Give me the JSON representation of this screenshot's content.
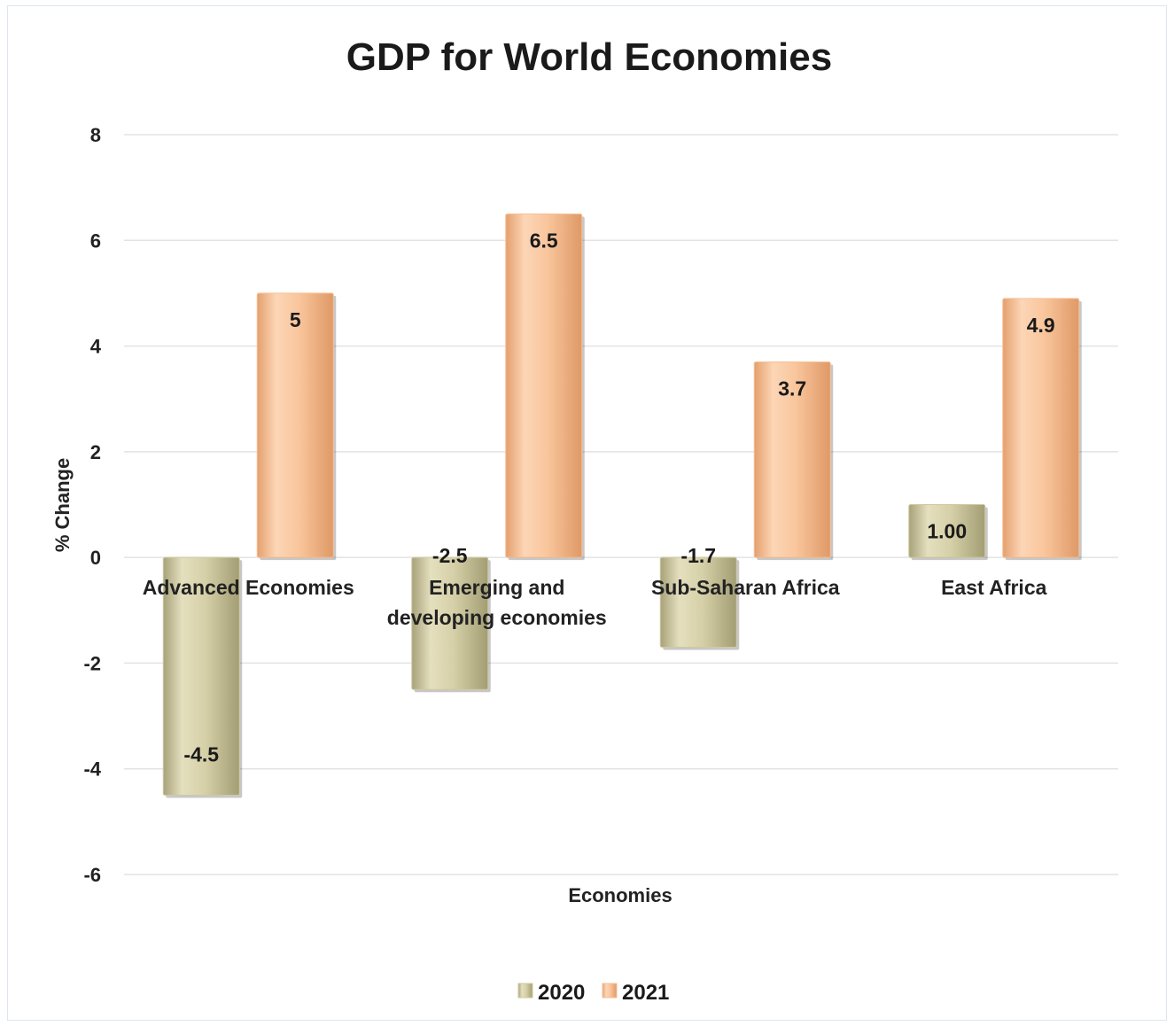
{
  "chart_data": {
    "type": "bar",
    "title": "GDP for World Economies",
    "xlabel": "Economies",
    "ylabel": "% Change",
    "ylim": [
      -6,
      8
    ],
    "yticks": [
      8,
      6,
      4,
      2,
      0,
      -2,
      -4,
      -6
    ],
    "categories": [
      [
        "Advanced Economies"
      ],
      [
        "Emerging and",
        "developing economies"
      ],
      [
        "Sub-Saharan Africa"
      ],
      [
        "East Africa"
      ]
    ],
    "series": [
      {
        "name": "2020",
        "values": [
          -4.5,
          -2.5,
          -1.7,
          1.0
        ],
        "labels": [
          "-4.5",
          "-2.5",
          "-1.7",
          "1.00"
        ],
        "color": "#cfc9a0"
      },
      {
        "name": "2021",
        "values": [
          5,
          6.5,
          3.7,
          4.9
        ],
        "labels": [
          "5",
          "6.5",
          "3.7",
          "4.9"
        ],
        "color": "#f7bf94"
      }
    ],
    "grid": true,
    "legend_position": "bottom"
  }
}
